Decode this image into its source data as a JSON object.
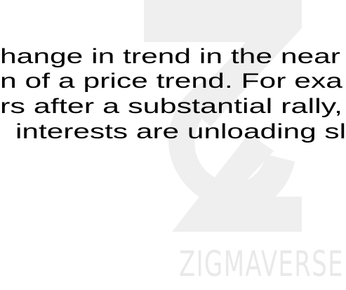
{
  "document": {
    "lines": [
      "hange in trend in the near",
      "n of a price trend. For exa",
      "rs after a substantial rally,",
      "interests are unloading sl"
    ],
    "watermark": "ZIGMAVERSE"
  }
}
